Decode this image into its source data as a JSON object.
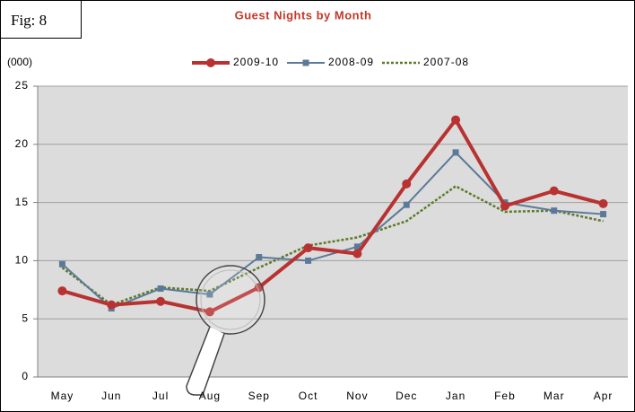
{
  "chart_data": {
    "type": "line",
    "figure_label": "Fig: 8",
    "title": "Guest Nights by Month",
    "y_label": "(000)",
    "categories": [
      "May",
      "Jun",
      "Jul",
      "Aug",
      "Sep",
      "Oct",
      "Nov",
      "Dec",
      "Jan",
      "Feb",
      "Mar",
      "Apr"
    ],
    "series": [
      {
        "name": "2009-10",
        "color": "#b83232",
        "marker": "circle",
        "dashed": false,
        "values": [
          7.4,
          6.2,
          6.5,
          5.6,
          7.7,
          11.1,
          10.6,
          16.6,
          22.1,
          14.7,
          16.0,
          14.9
        ]
      },
      {
        "name": "2008-09",
        "color": "#5b7a99",
        "marker": "square",
        "dashed": false,
        "values": [
          9.7,
          5.9,
          7.6,
          7.1,
          10.3,
          10.0,
          11.2,
          14.8,
          19.3,
          15.0,
          14.3,
          14.0
        ]
      },
      {
        "name": "2007-08",
        "color": "#5e7a2a",
        "marker": "none",
        "dashed": true,
        "values": [
          9.4,
          6.2,
          7.7,
          7.4,
          9.4,
          11.3,
          12.0,
          13.4,
          16.4,
          14.2,
          14.3,
          13.4
        ]
      }
    ],
    "ylim": [
      0,
      25
    ],
    "yticks": [
      0,
      5,
      10,
      15,
      20,
      25
    ],
    "grid": true,
    "legend": "top"
  }
}
